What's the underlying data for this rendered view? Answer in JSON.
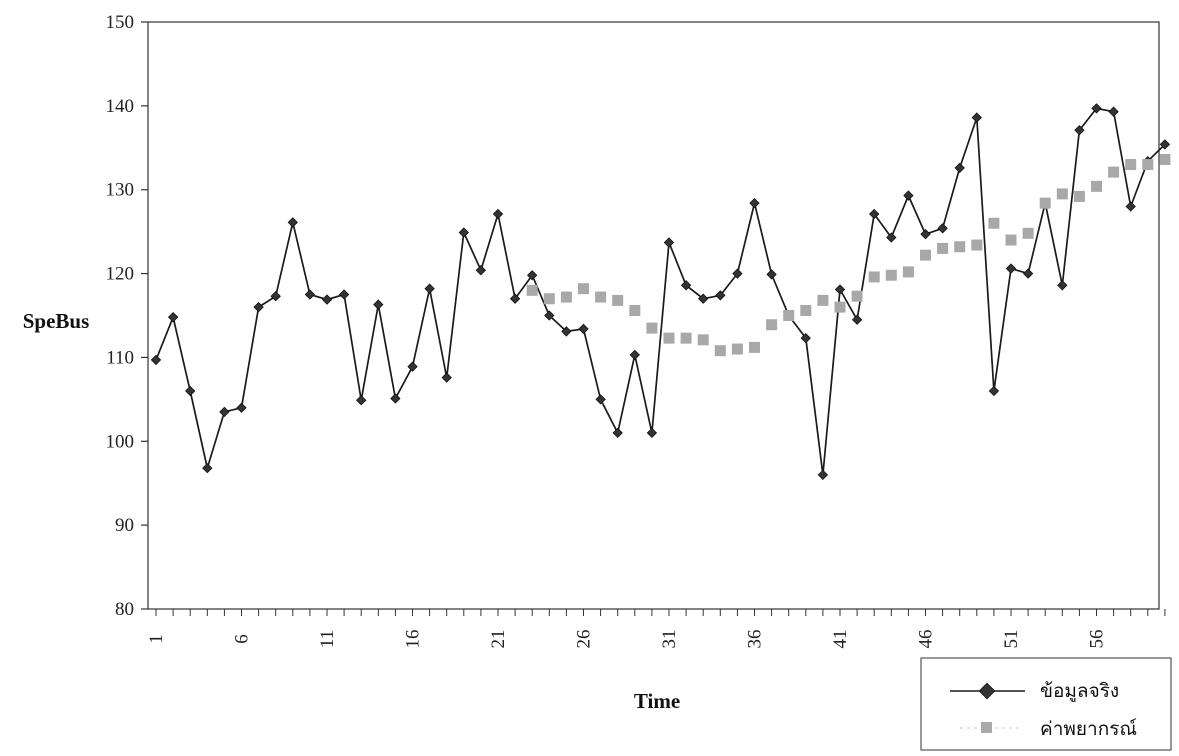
{
  "chart_data": {
    "type": "line",
    "title": "",
    "xlabel": "Time",
    "ylabel": "SpeBus",
    "ylim": [
      80,
      150
    ],
    "yticks": [
      80,
      90,
      100,
      110,
      120,
      130,
      140,
      150
    ],
    "xlim": [
      1,
      60
    ],
    "xtick_labels": [
      "1",
      "6",
      "11",
      "16",
      "21",
      "26",
      "31",
      "36",
      "41",
      "46",
      "51",
      "56"
    ],
    "grid": false,
    "legend_position": "bottom-right",
    "series": [
      {
        "name": "ข้อมูลจริง",
        "style": "line-diamond",
        "color": "#1a1a1a",
        "x": [
          1,
          2,
          3,
          4,
          5,
          6,
          7,
          8,
          9,
          10,
          11,
          12,
          13,
          14,
          15,
          16,
          17,
          18,
          19,
          20,
          21,
          22,
          23,
          24,
          25,
          26,
          27,
          28,
          29,
          30,
          31,
          32,
          33,
          34,
          35,
          36,
          37,
          38,
          39,
          40,
          41,
          42,
          43,
          44,
          45,
          46,
          47,
          48,
          49,
          50,
          51,
          52,
          53,
          54,
          55,
          56,
          57,
          58,
          59,
          60
        ],
        "values": [
          109.7,
          114.8,
          106,
          96.8,
          103.5,
          104,
          116,
          117.3,
          126.1,
          117.5,
          116.9,
          117.5,
          104.9,
          116.3,
          105.1,
          108.9,
          118.2,
          107.6,
          124.9,
          120.4,
          127.1,
          117,
          119.8,
          115,
          113.1,
          113.4,
          105,
          101,
          110.3,
          101,
          123.7,
          118.6,
          117,
          117.4,
          120,
          128.4,
          119.9,
          115,
          112.3,
          96,
          118.1,
          114.5,
          127.1,
          124.3,
          129.3,
          124.7,
          125.4,
          132.6,
          138.6,
          106,
          120.6,
          120,
          128.4,
          118.6,
          137.1,
          139.7,
          139.3,
          128,
          133.4,
          135.4
        ]
      },
      {
        "name": "ค่าพยากรณ์",
        "style": "markers-only-square",
        "color": "#a8a8a8",
        "x": [
          23,
          24,
          25,
          26,
          27,
          28,
          29,
          30,
          31,
          32,
          33,
          34,
          35,
          36,
          37,
          38,
          39,
          40,
          41,
          42,
          43,
          44,
          45,
          46,
          47,
          48,
          49,
          50,
          51,
          52,
          53,
          54,
          55,
          56,
          57,
          58,
          59,
          60
        ],
        "values": [
          118,
          117,
          117.2,
          118.2,
          117.2,
          116.8,
          115.6,
          113.5,
          112.3,
          112.3,
          112.1,
          110.8,
          111,
          111.2,
          113.9,
          115,
          115.6,
          116.8,
          116,
          117.3,
          119.6,
          119.8,
          120.2,
          122.2,
          123,
          123.2,
          123.4,
          126,
          124,
          124.8,
          128.4,
          129.5,
          129.2,
          130.4,
          132.1,
          133,
          133,
          133.6
        ]
      }
    ]
  }
}
